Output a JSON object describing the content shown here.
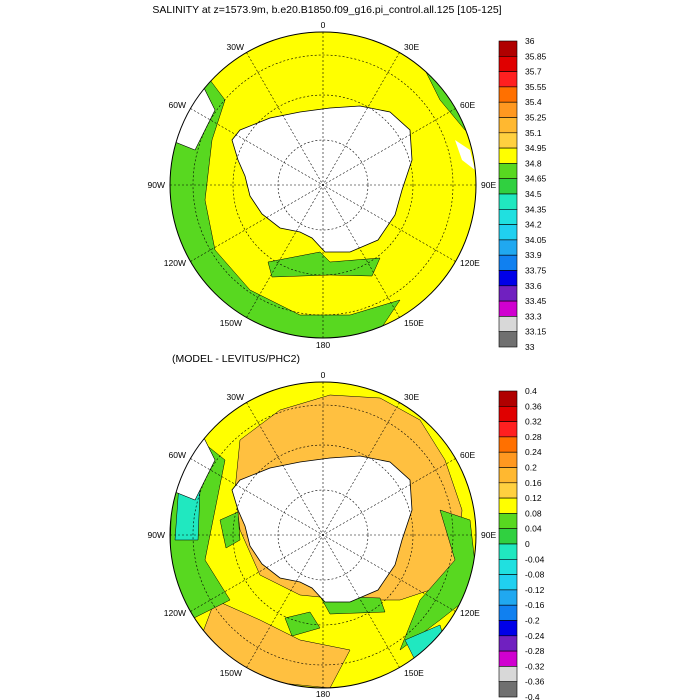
{
  "top_panel": {
    "title": "SALINITY at z=1573.9m, b.e20.B1850.f09_g16.pi_control.all.125 [105-125]",
    "lon_labels": [
      "0",
      "30E",
      "60E",
      "90E",
      "120E",
      "150E",
      "180",
      "150W",
      "120W",
      "90W",
      "60W",
      "30W"
    ],
    "colorbar": {
      "labels": [
        "36",
        "35.85",
        "35.7",
        "35.55",
        "35.4",
        "35.25",
        "35.1",
        "34.95",
        "34.8",
        "34.65",
        "34.5",
        "34.35",
        "34.2",
        "34.05",
        "33.9",
        "33.75",
        "33.6",
        "33.45",
        "33.3",
        "33.15",
        "33"
      ],
      "colors": [
        "#b00000",
        "#e00000",
        "#ff2020",
        "#ff7000",
        "#ff9820",
        "#ffb830",
        "#ffd040",
        "#ffff00",
        "#58d820",
        "#30d040",
        "#20e8c0",
        "#20e0e0",
        "#20d0f0",
        "#20a8f0",
        "#1080f0",
        "#0000e8",
        "#7020c0",
        "#d000d0",
        "#d8d8d8",
        "#707070"
      ]
    },
    "fields": {
      "ocean": "#ffff00",
      "fringe": "#58d820",
      "land": "#ffffff"
    }
  },
  "bottom_panel": {
    "title": "(MODEL - LEVITUS/PHC2)",
    "lon_labels": [
      "0",
      "30E",
      "60E",
      "90E",
      "120E",
      "150E",
      "180",
      "150W",
      "120W",
      "90W",
      "60W",
      "30W"
    ],
    "colorbar": {
      "labels": [
        "0.4",
        "0.36",
        "0.32",
        "0.28",
        "0.24",
        "0.2",
        "0.16",
        "0.12",
        "0.08",
        "0.04",
        "0",
        "-0.04",
        "-0.08",
        "-0.12",
        "-0.16",
        "-0.2",
        "-0.24",
        "-0.28",
        "-0.32",
        "-0.36",
        "-0.4"
      ],
      "colors": [
        "#b00000",
        "#e00000",
        "#ff2020",
        "#ff7000",
        "#ff9820",
        "#ffb830",
        "#ffd040",
        "#ffff00",
        "#58d820",
        "#30d040",
        "#20e8c0",
        "#20e0e0",
        "#20d0f0",
        "#20a8f0",
        "#1080f0",
        "#0000e8",
        "#7020c0",
        "#d000d0",
        "#d8d8d8",
        "#707070"
      ]
    },
    "fields": {
      "ocean": "#ffff00",
      "positive": "#ffc040",
      "negative": "#58d820",
      "land": "#ffffff"
    }
  }
}
